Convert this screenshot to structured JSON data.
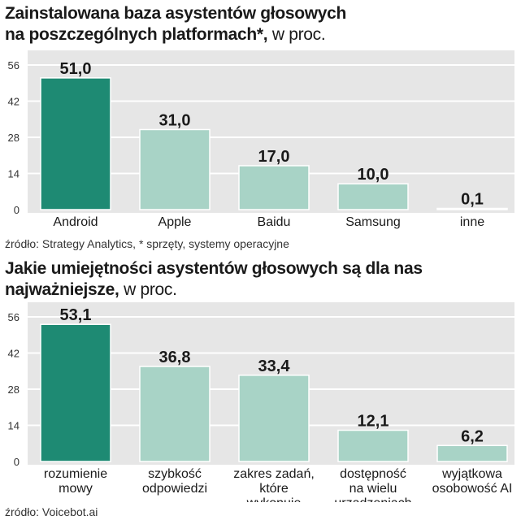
{
  "chart_data": [
    {
      "type": "bar",
      "title_line1": "Zainstalowana baza asystentów głosowych",
      "title_line2": "na poszczególnych platformach*,",
      "unit": "w proc.",
      "categories": [
        [
          "Android"
        ],
        [
          "Apple"
        ],
        [
          "Baidu"
        ],
        [
          "Samsung"
        ],
        [
          "inne"
        ]
      ],
      "values": [
        51.0,
        31.0,
        17.0,
        10.0,
        0.1
      ],
      "value_labels": [
        "51,0",
        "31,0",
        "17,0",
        "10,0",
        "0,1"
      ],
      "highlight_index": 0,
      "ylim": [
        0,
        56
      ],
      "yticks": [
        0,
        14,
        28,
        42,
        56
      ],
      "source": "źródło: Strategy Analytics, * sprzęty, systemy operacyjne"
    },
    {
      "type": "bar",
      "title_line1": "Jakie umiejętności asystentów głosowych są dla nas",
      "title_line2": "najważniejsze,",
      "unit": "w proc.",
      "categories": [
        [
          "rozumienie",
          "mowy"
        ],
        [
          "szybkość",
          "odpowiedzi"
        ],
        [
          "zakres zadań,",
          "które",
          "wykonuje"
        ],
        [
          "dostępność",
          "na wielu",
          "urządzeniach"
        ],
        [
          "wyjątkowa",
          "osobowość AI"
        ]
      ],
      "values": [
        53.1,
        36.8,
        33.4,
        12.1,
        6.2
      ],
      "value_labels": [
        "53,1",
        "36,8",
        "33,4",
        "12,1",
        "6,2"
      ],
      "highlight_index": 0,
      "ylim": [
        0,
        56
      ],
      "yticks": [
        0,
        14,
        28,
        42,
        56
      ],
      "source": "źródło: Voicebot.ai"
    }
  ],
  "colors": {
    "highlight": "#1e8a73",
    "bar": "#a8d3c6",
    "panel": "#e6e6e6",
    "grid": "#ffffff",
    "text": "#1a1a1a"
  }
}
